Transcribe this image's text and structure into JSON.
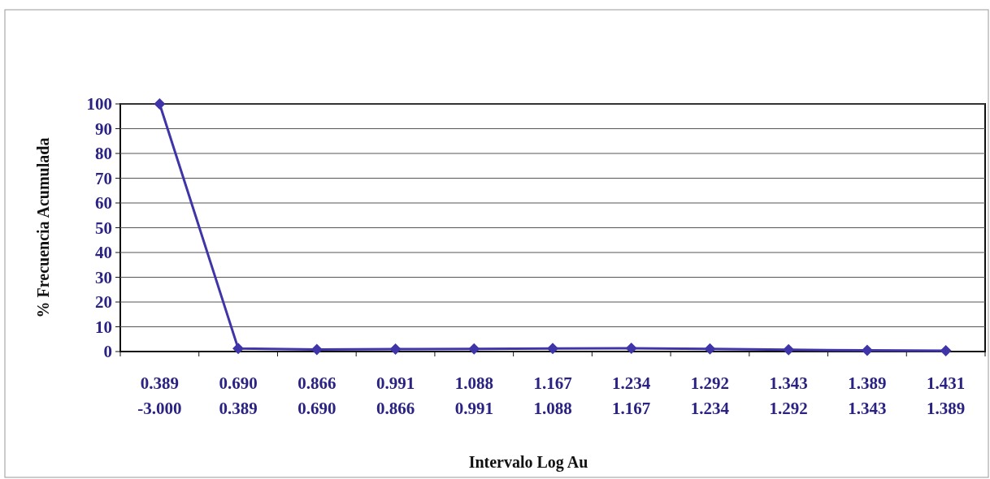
{
  "chart_data": {
    "type": "line",
    "xlabel": "Intervalo Log Au",
    "ylabel": "% Frecuencia Acumulada",
    "categories": [
      "0.389\n-3.000",
      "0.690\n0.389",
      "0.866\n0.690",
      "0.991\n0.866",
      "1.088\n0.991",
      "1.167\n1.088",
      "1.234\n1.167",
      "1.292\n1.234",
      "1.343\n1.292",
      "1.389\n1.343",
      "1.431\n1.389"
    ],
    "series": [
      {
        "color": "#3f34a8",
        "values": [
          100,
          1.2,
          0.8,
          1,
          1.1,
          1.2,
          1.3,
          1.1,
          0.7,
          0.5,
          0.3
        ]
      }
    ],
    "ylim": [
      0,
      100
    ],
    "yticks": [
      0,
      10,
      20,
      30,
      40,
      50,
      60,
      70,
      80,
      90,
      100
    ],
    "grid": "y",
    "marker": "diamond",
    "line_style": "solid"
  }
}
